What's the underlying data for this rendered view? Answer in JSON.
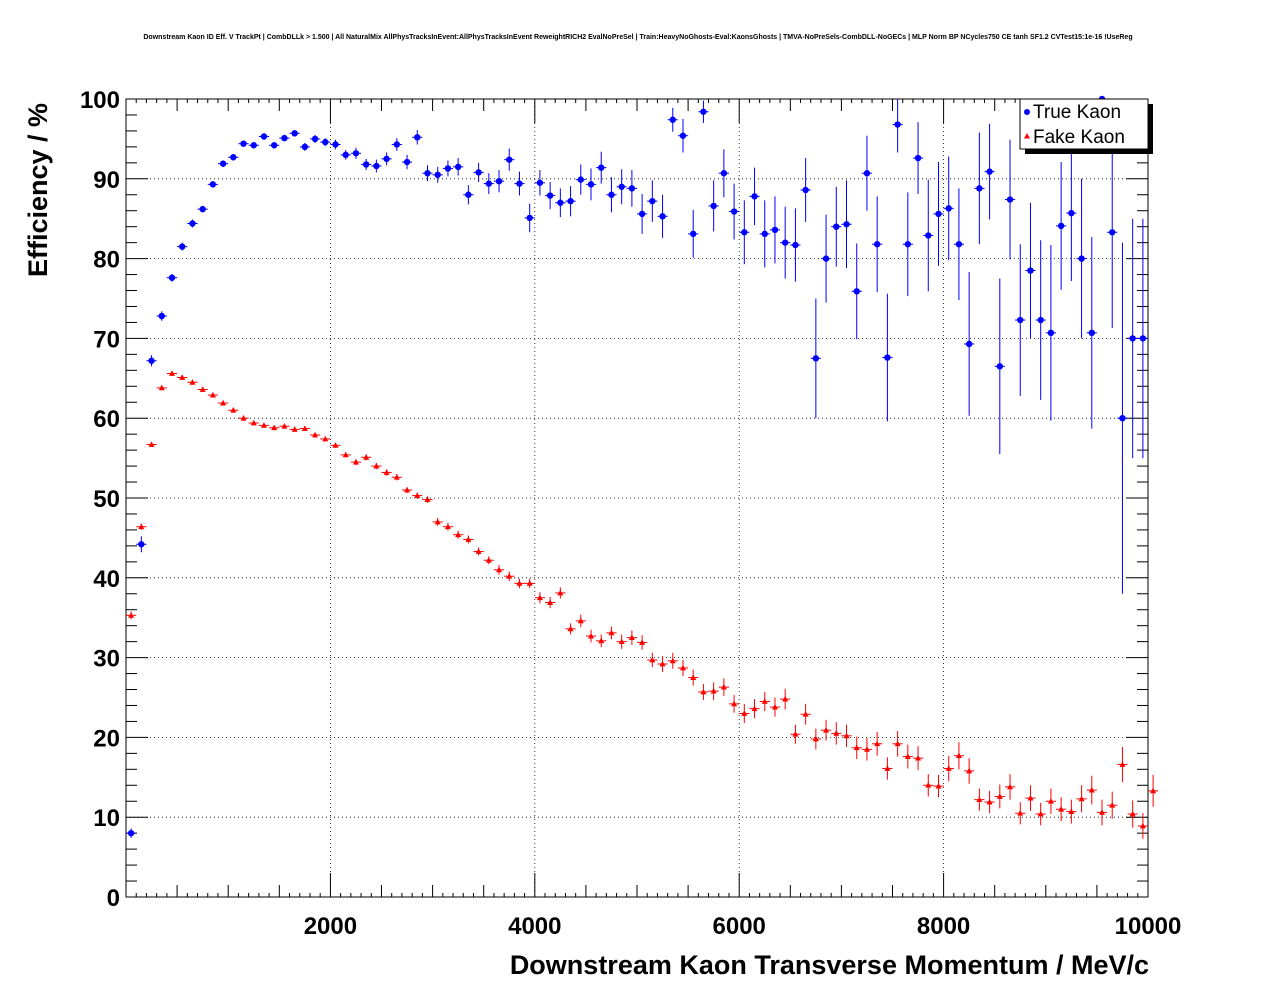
{
  "chart_data": {
    "type": "scatter",
    "title": "Downstream Kaon ID Eff. V TrackPt | CombDLLk > 1.500 | All NaturalMix AllPhysTracksInEvent:AllPhysTracksInEvent ReweightRICH2 EvalNoPreSel | Train:HeavyNoGhosts-Eval:KaonsGhosts | TMVA-NoPreSels-CombDLL-NoGECs | MLP Norm BP NCycles750 CE tanh SF1.2 CVTest15:1e-16 !UseReg",
    "xlabel": "Downstream Kaon Transverse Momentum / MeV/c",
    "ylabel": "Efficiency / %",
    "xlim": [
      0,
      10000
    ],
    "ylim": [
      0,
      100
    ],
    "x_ticks": [
      "2000",
      "4000",
      "6000",
      "8000",
      "10000"
    ],
    "y_ticks": [
      "0",
      "10",
      "20",
      "30",
      "40",
      "50",
      "60",
      "70",
      "80",
      "90",
      "100"
    ],
    "grid": true,
    "legend_position": "top-right",
    "bin_width": 100,
    "series": [
      {
        "name": "True Kaon",
        "color": "#0000ff",
        "marker": "circle",
        "x": [
          50,
          150,
          250,
          350,
          450,
          550,
          650,
          750,
          850,
          950,
          1050,
          1150,
          1250,
          1350,
          1450,
          1550,
          1650,
          1750,
          1850,
          1950,
          2050,
          2150,
          2250,
          2350,
          2450,
          2550,
          2650,
          2750,
          2850,
          2950,
          3050,
          3150,
          3250,
          3350,
          3450,
          3550,
          3650,
          3750,
          3850,
          3950,
          4050,
          4150,
          4250,
          4350,
          4450,
          4550,
          4650,
          4750,
          4850,
          4950,
          5050,
          5150,
          5250,
          5350,
          5450,
          5550,
          5650,
          5750,
          5850,
          5950,
          6050,
          6150,
          6250,
          6350,
          6450,
          6550,
          6650,
          6750,
          6850,
          6950,
          7050,
          7150,
          7250,
          7350,
          7450,
          7550,
          7650,
          7750,
          7850,
          7950,
          8050,
          8150,
          8250,
          8350,
          8450,
          8550,
          8650,
          8750,
          8850,
          8950,
          9050,
          9150,
          9250,
          9350,
          9450,
          9550,
          9650,
          9750,
          9850,
          9950
        ],
        "y": [
          8.0,
          44.2,
          67.2,
          72.8,
          77.6,
          81.5,
          84.4,
          86.2,
          89.3,
          91.9,
          92.7,
          94.4,
          94.2,
          95.3,
          94.2,
          95.1,
          95.7,
          94.0,
          95.0,
          94.6,
          94.3,
          93.0,
          93.2,
          91.8,
          91.6,
          92.5,
          94.3,
          92.1,
          95.2,
          90.7,
          90.5,
          91.3,
          91.5,
          88.0,
          90.8,
          89.4,
          89.7,
          92.4,
          89.4,
          85.1,
          89.5,
          87.9,
          87.0,
          87.2,
          89.9,
          89.3,
          91.4,
          88.0,
          89.0,
          88.8,
          85.6,
          87.2,
          85.3,
          97.4,
          95.4,
          83.1,
          98.4,
          86.6,
          90.7,
          85.9,
          83.3,
          87.8,
          83.1,
          83.6,
          82.0,
          81.7,
          88.6,
          67.5,
          80.0,
          84.0,
          84.3,
          75.9,
          90.7,
          81.8,
          67.6,
          96.8,
          81.8,
          92.6,
          82.9,
          85.6,
          86.3,
          81.8,
          69.3,
          88.8,
          90.9,
          66.5,
          87.4,
          72.3,
          78.5,
          72.3,
          70.7,
          84.1,
          85.7,
          80.0,
          70.7,
          100.0,
          83.3,
          60.0,
          70.0,
          70.0
        ],
        "yerr": [
          0.6,
          1.0,
          0.7,
          0.6,
          0.5,
          0.5,
          0.5,
          0.4,
          0.4,
          0.4,
          0.4,
          0.4,
          0.4,
          0.4,
          0.4,
          0.4,
          0.4,
          0.5,
          0.5,
          0.5,
          0.6,
          0.6,
          0.7,
          0.7,
          0.8,
          0.8,
          0.8,
          0.9,
          0.9,
          1.0,
          1.0,
          1.0,
          1.1,
          1.2,
          1.2,
          1.3,
          1.4,
          1.4,
          1.5,
          1.8,
          1.6,
          1.7,
          1.8,
          1.9,
          1.9,
          2.0,
          2.0,
          2.2,
          2.2,
          2.3,
          2.5,
          2.6,
          2.7,
          1.5,
          2.1,
          3.0,
          1.4,
          3.2,
          3.0,
          3.5,
          4.0,
          3.6,
          4.2,
          4.2,
          4.5,
          4.6,
          4.0,
          7.5,
          5.5,
          5.0,
          5.5,
          6.0,
          4.7,
          6.0,
          8.0,
          3.5,
          6.5,
          4.5,
          7.0,
          6.5,
          6.5,
          7.0,
          9.0,
          7.0,
          6.0,
          11.0,
          7.5,
          9.5,
          8.5,
          10.0,
          11.0,
          8.0,
          8.5,
          10.0,
          12.0,
          2.0,
          12.0,
          22.0,
          15.0,
          15.0
        ]
      },
      {
        "name": "Fake Kaon",
        "color": "#ff0000",
        "marker": "triangle",
        "x": [
          50,
          150,
          250,
          350,
          450,
          550,
          650,
          750,
          850,
          950,
          1050,
          1150,
          1250,
          1350,
          1450,
          1550,
          1650,
          1750,
          1850,
          1950,
          2050,
          2150,
          2250,
          2350,
          2450,
          2550,
          2650,
          2750,
          2850,
          2950,
          3050,
          3150,
          3250,
          3350,
          3450,
          3550,
          3650,
          3750,
          3850,
          3950,
          4050,
          4150,
          4250,
          4350,
          4450,
          4550,
          4650,
          4750,
          4850,
          4950,
          5050,
          5150,
          5250,
          5350,
          5450,
          5550,
          5650,
          5750,
          5850,
          5950,
          6050,
          6150,
          6250,
          6350,
          6450,
          6550,
          6650,
          6750,
          6850,
          6950,
          7050,
          7150,
          7250,
          7350,
          7450,
          7550,
          7650,
          7750,
          7850,
          7950,
          8050,
          8150,
          8250,
          8350,
          8450,
          8550,
          8650,
          8750,
          8850,
          8950,
          9050,
          9150,
          9250,
          9350,
          9450,
          9550,
          9650,
          9750,
          9850,
          9950,
          10050
        ],
        "y": [
          35.3,
          46.4,
          56.7,
          63.8,
          65.6,
          65.1,
          64.5,
          63.6,
          62.9,
          61.9,
          61.0,
          60.0,
          59.4,
          59.1,
          58.8,
          59.0,
          58.6,
          58.7,
          57.9,
          57.4,
          56.6,
          55.4,
          54.5,
          55.1,
          54.0,
          53.2,
          52.6,
          51.0,
          50.3,
          49.8,
          47.0,
          46.4,
          45.4,
          44.8,
          43.3,
          42.2,
          41.0,
          40.2,
          39.3,
          39.3,
          37.5,
          36.9,
          38.1,
          33.6,
          34.6,
          32.7,
          32.1,
          33.1,
          32.0,
          32.5,
          31.9,
          29.7,
          29.2,
          29.6,
          28.7,
          27.5,
          25.7,
          25.8,
          26.3,
          24.2,
          23.0,
          23.6,
          24.5,
          23.8,
          24.8,
          20.4,
          22.9,
          19.8,
          20.9,
          20.5,
          20.2,
          18.7,
          18.5,
          19.2,
          16.1,
          19.2,
          17.6,
          17.4,
          14.0,
          13.9,
          16.1,
          17.7,
          15.8,
          12.2,
          11.9,
          12.6,
          13.8,
          10.5,
          12.4,
          10.4,
          12.0,
          11.0,
          10.7,
          12.3,
          13.4,
          10.6,
          11.5,
          16.6,
          10.4,
          8.9,
          13.3
        ],
        "yerr": [
          0.5,
          0.4,
          0.3,
          0.3,
          0.3,
          0.3,
          0.3,
          0.3,
          0.3,
          0.3,
          0.3,
          0.3,
          0.3,
          0.3,
          0.3,
          0.3,
          0.3,
          0.3,
          0.3,
          0.3,
          0.3,
          0.3,
          0.4,
          0.4,
          0.4,
          0.4,
          0.4,
          0.4,
          0.4,
          0.4,
          0.5,
          0.5,
          0.5,
          0.5,
          0.5,
          0.5,
          0.6,
          0.6,
          0.6,
          0.6,
          0.7,
          0.7,
          0.7,
          0.7,
          0.8,
          0.8,
          0.8,
          0.8,
          0.9,
          0.9,
          0.9,
          0.9,
          1.0,
          1.0,
          1.0,
          1.0,
          1.0,
          1.1,
          1.1,
          1.1,
          1.2,
          1.2,
          1.2,
          1.2,
          1.3,
          1.2,
          1.3,
          1.3,
          1.3,
          1.4,
          1.4,
          1.4,
          1.4,
          1.5,
          1.4,
          1.6,
          1.5,
          1.5,
          1.4,
          1.4,
          1.6,
          1.7,
          1.6,
          1.4,
          1.4,
          1.5,
          1.6,
          1.4,
          1.6,
          1.4,
          1.6,
          1.5,
          1.5,
          1.7,
          1.8,
          1.6,
          1.7,
          2.2,
          1.7,
          1.6,
          2.0
        ]
      }
    ]
  }
}
